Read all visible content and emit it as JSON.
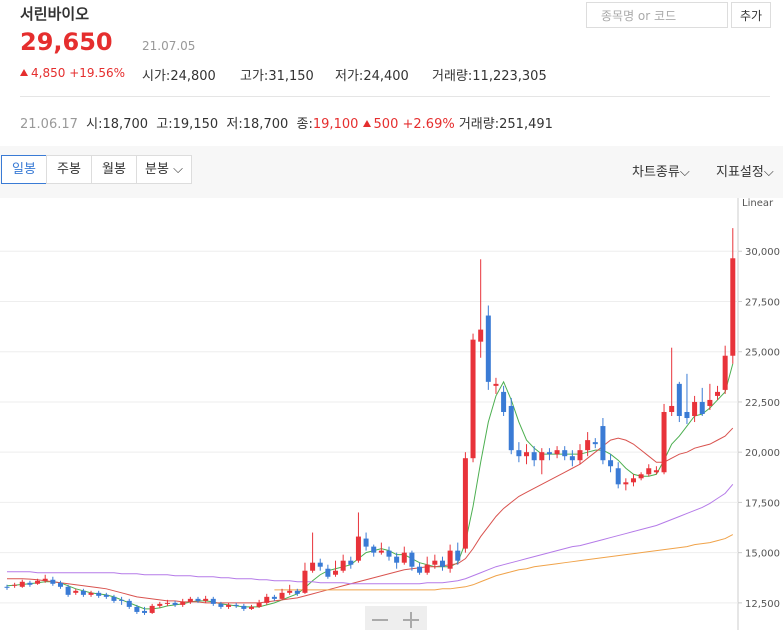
{
  "header": {
    "title": "서린바이오",
    "price": "29,650",
    "date": "21.07.05",
    "change": "4,850",
    "change_pct": "+19.56%",
    "stats": [
      {
        "label": "시가",
        "value": "24,800"
      },
      {
        "label": "고가",
        "value": "31,150"
      },
      {
        "label": "저가",
        "value": "24,400"
      },
      {
        "label": "거래량",
        "value": "11,223,305"
      }
    ]
  },
  "search": {
    "placeholder": "종목명 or 코드",
    "button": "추가"
  },
  "prev_day": {
    "date": "21.06.17",
    "stats": [
      {
        "label": "시",
        "value": "18,700"
      },
      {
        "label": "고",
        "value": "19,150"
      },
      {
        "label": "저",
        "value": "18,700"
      },
      {
        "label": "종",
        "value": "19,100"
      }
    ],
    "change": "500",
    "change_pct": "+2.69%",
    "volume_label": "거래량",
    "volume": "251,491"
  },
  "tabs": [
    "일봉",
    "주봉",
    "월봉",
    "분봉"
  ],
  "menus": [
    "차트종류",
    "지표설정"
  ],
  "chart_data": {
    "type": "candlestick",
    "scale_label": "Linear",
    "grid": true,
    "up_color": "#e8333a",
    "down_color": "#3a7bd5",
    "ylim": [
      11150,
      32650
    ],
    "yticks": [
      {
        "value": 12500,
        "label": "12,500"
      },
      {
        "value": 15000,
        "label": "15,000"
      },
      {
        "value": 17500,
        "label": "17,500"
      },
      {
        "value": 20000,
        "label": "20,000"
      },
      {
        "value": 22500,
        "label": "22,500"
      },
      {
        "value": 25000,
        "label": "25,000"
      },
      {
        "value": 27500,
        "label": "27,500"
      },
      {
        "value": 30000,
        "label": "30,000"
      }
    ],
    "open": [
      13300,
      13350,
      13300,
      13500,
      13450,
      13600,
      13650,
      13500,
      13300,
      13000,
      13100,
      12900,
      13000,
      12900,
      12800,
      12650,
      12600,
      12300,
      12100,
      12000,
      12350,
      12450,
      12500,
      12400,
      12550,
      12700,
      12600,
      12700,
      12450,
      12300,
      12400,
      12350,
      12200,
      12300,
      12500,
      12800,
      12700,
      13000,
      13100,
      13000,
      14100,
      14500,
      14200,
      13900,
      14100,
      14600,
      14600,
      15700,
      15300,
      15000,
      15100,
      14800,
      14500,
      15000,
      14300,
      14000,
      14400,
      14600,
      14200,
      15100,
      15200,
      19700,
      25500,
      26800,
      23300,
      23000,
      22300,
      20100,
      19800,
      20000,
      19600,
      20000,
      19900,
      20100,
      19800,
      19600,
      20100,
      20500,
      21300,
      19600,
      19200,
      18400,
      18500,
      18700,
      18900,
      19000,
      19000,
      22000,
      23400,
      22000,
      21800,
      22500,
      22300,
      22800,
      23100,
      24800
    ],
    "high": [
      13400,
      13500,
      13650,
      13600,
      13700,
      13900,
      13800,
      13600,
      13400,
      13200,
      13200,
      13100,
      13100,
      13000,
      12900,
      12800,
      12700,
      12400,
      12300,
      12450,
      12550,
      12650,
      12600,
      12700,
      12800,
      12800,
      12850,
      12800,
      12550,
      12500,
      12500,
      12450,
      12400,
      12650,
      12950,
      12900,
      13200,
      13400,
      13200,
      14500,
      16000,
      14700,
      14400,
      14600,
      14900,
      14800,
      17000,
      16000,
      15400,
      15500,
      15300,
      15000,
      15300,
      15100,
      14500,
      14800,
      14900,
      14800,
      15400,
      15500,
      20000,
      25900,
      29600,
      27300,
      23700,
      23300,
      22700,
      20500,
      20400,
      20300,
      20200,
      20200,
      20300,
      20300,
      20100,
      20400,
      21000,
      20700,
      21700,
      19900,
      19500,
      18700,
      18900,
      19000,
      19400,
      19300,
      22400,
      25200,
      23500,
      23900,
      22800,
      23200,
      23400,
      23300,
      25300,
      31150
    ],
    "low": [
      13150,
      13250,
      13250,
      13300,
      13400,
      13500,
      13350,
      13200,
      12800,
      12900,
      12800,
      12800,
      12750,
      12700,
      12500,
      12400,
      12200,
      11950,
      11900,
      11950,
      12250,
      12350,
      12300,
      12300,
      12450,
      12500,
      12500,
      12350,
      12200,
      12200,
      12250,
      12100,
      12150,
      12250,
      12400,
      12600,
      12650,
      12900,
      12850,
      12950,
      14000,
      14100,
      13700,
      13800,
      14000,
      14200,
      14500,
      15100,
      14800,
      14900,
      14600,
      14200,
      14400,
      14100,
      13900,
      13900,
      14200,
      14100,
      14000,
      14400,
      15000,
      19500,
      24700,
      23100,
      22900,
      21800,
      19900,
      19500,
      19400,
      19300,
      18900,
      19600,
      19700,
      19600,
      19300,
      19400,
      19800,
      20200,
      19400,
      19000,
      18200,
      18100,
      18300,
      18600,
      18800,
      18900,
      18900,
      21800,
      21500,
      21400,
      21500,
      21800,
      22100,
      22600,
      22900,
      24400
    ],
    "close": [
      13250,
      13400,
      13550,
      13400,
      13600,
      13700,
      13450,
      13300,
      12900,
      13100,
      12900,
      13000,
      12850,
      12800,
      12600,
      12600,
      12300,
      12050,
      12000,
      12350,
      12450,
      12500,
      12400,
      12550,
      12700,
      12600,
      12700,
      12450,
      12300,
      12400,
      12350,
      12200,
      12300,
      12500,
      12800,
      12700,
      13000,
      13100,
      12950,
      14100,
      14500,
      14300,
      13800,
      14100,
      14600,
      14400,
      15800,
      15300,
      15000,
      15100,
      14800,
      14500,
      15000,
      14300,
      14000,
      14400,
      14600,
      14300,
      15100,
      14600,
      19700,
      25600,
      26100,
      23500,
      23400,
      22000,
      20100,
      19800,
      20000,
      19600,
      20000,
      19900,
      20100,
      19800,
      19600,
      20100,
      20600,
      20400,
      19600,
      19300,
      18400,
      18500,
      18700,
      18900,
      19200,
      19100,
      22000,
      22300,
      21800,
      21700,
      22500,
      21900,
      22600,
      23000,
      24800,
      29650
    ],
    "lines": [
      {
        "color": "#4caf50",
        "values": [
          13350,
          13380,
          13420,
          13450,
          13500,
          13550,
          13550,
          13500,
          13350,
          13200,
          13100,
          13000,
          12950,
          12900,
          12800,
          12650,
          12500,
          12350,
          12200,
          12200,
          12250,
          12350,
          12400,
          12450,
          12550,
          12600,
          12600,
          12550,
          12450,
          12400,
          12350,
          12300,
          12300,
          12300,
          12400,
          12500,
          12650,
          12800,
          12950,
          13250,
          13600,
          13900,
          14100,
          14200,
          14300,
          14400,
          14700,
          15000,
          15100,
          15200,
          15100,
          14900,
          14900,
          14700,
          14500,
          14400,
          14300,
          14300,
          14300,
          14500,
          15500,
          17300,
          19500,
          21500,
          22800,
          23500,
          22600,
          21500,
          20600,
          20200,
          19900,
          19900,
          19900,
          19900,
          19900,
          19900,
          20000,
          20100,
          20100,
          19900,
          19600,
          19200,
          18900,
          18800,
          18800,
          18900,
          19600,
          20400,
          20800,
          21300,
          21800,
          21900,
          22200,
          22600,
          23000,
          24400
        ]
      },
      {
        "color": "#d9534f",
        "values": [
          13700,
          13700,
          13700,
          13680,
          13650,
          13600,
          13550,
          13500,
          13450,
          13400,
          13350,
          13300,
          13250,
          13200,
          13100,
          13000,
          12900,
          12800,
          12750,
          12700,
          12650,
          12600,
          12600,
          12550,
          12550,
          12550,
          12500,
          12500,
          12500,
          12500,
          12500,
          12500,
          12500,
          12500,
          12550,
          12600,
          12650,
          12700,
          12750,
          12850,
          12950,
          13050,
          13150,
          13250,
          13350,
          13450,
          13550,
          13650,
          13750,
          13850,
          13950,
          14050,
          14150,
          14200,
          14250,
          14300,
          14300,
          14350,
          14400,
          14450,
          14700,
          15200,
          15800,
          16300,
          16800,
          17200,
          17500,
          17800,
          18000,
          18200,
          18400,
          18600,
          18800,
          19000,
          19200,
          19400,
          19700,
          20000,
          20300,
          20600,
          20700,
          20600,
          20400,
          20100,
          19800,
          19500,
          19500,
          19700,
          19900,
          20000,
          20200,
          20300,
          20400,
          20600,
          20800,
          21200
        ]
      },
      {
        "color": "#b57be8",
        "values": [
          14050,
          14050,
          14050,
          14050,
          14000,
          14000,
          14000,
          14000,
          14000,
          14000,
          14000,
          14000,
          14000,
          14000,
          14000,
          13950,
          13950,
          13950,
          13900,
          13900,
          13900,
          13900,
          13850,
          13850,
          13850,
          13800,
          13800,
          13800,
          13750,
          13750,
          13700,
          13700,
          13700,
          13650,
          13650,
          13600,
          13600,
          13600,
          13550,
          13550,
          13550,
          13500,
          13500,
          13500,
          13500,
          13450,
          13450,
          13450,
          13450,
          13450,
          13450,
          13450,
          13450,
          13450,
          13450,
          13500,
          13500,
          13500,
          13550,
          13600,
          13700,
          13850,
          14000,
          14150,
          14300,
          14400,
          14500,
          14600,
          14700,
          14800,
          14900,
          15000,
          15100,
          15200,
          15300,
          15350,
          15450,
          15550,
          15650,
          15750,
          15850,
          15950,
          16050,
          16150,
          16250,
          16350,
          16500,
          16650,
          16800,
          16950,
          17100,
          17250,
          17450,
          17700,
          17950,
          18400
        ]
      },
      {
        "color": "#f0a34a",
        "values": [
          null,
          null,
          null,
          null,
          null,
          null,
          null,
          null,
          null,
          null,
          null,
          null,
          null,
          null,
          null,
          null,
          null,
          null,
          null,
          null,
          null,
          null,
          null,
          null,
          null,
          null,
          null,
          null,
          null,
          null,
          null,
          null,
          null,
          null,
          null,
          13150,
          13150,
          13150,
          13150,
          13150,
          13150,
          13150,
          13150,
          13150,
          13150,
          13150,
          13150,
          13150,
          13150,
          13150,
          13150,
          13150,
          13150,
          13150,
          13150,
          13150,
          13150,
          13200,
          13200,
          13250,
          13300,
          13400,
          13550,
          13700,
          13850,
          13950,
          14050,
          14150,
          14200,
          14300,
          14350,
          14400,
          14450,
          14500,
          14550,
          14600,
          14650,
          14700,
          14750,
          14800,
          14850,
          14900,
          14950,
          15000,
          15050,
          15100,
          15150,
          15200,
          15250,
          15300,
          15400,
          15450,
          15500,
          15600,
          15700,
          15900
        ]
      }
    ]
  }
}
